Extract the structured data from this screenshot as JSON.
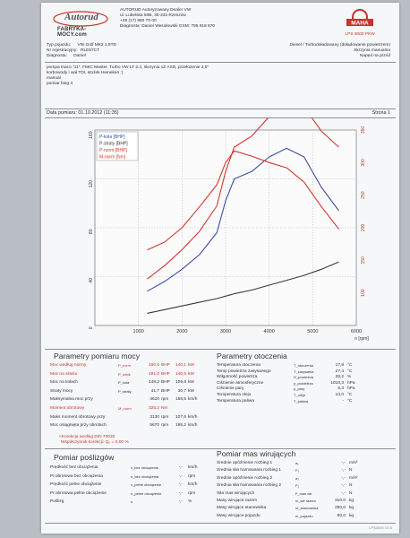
{
  "header": {
    "logo_top": "Autorud",
    "logo_bottom": "FABRYKA-MOCY.com",
    "company_lines": [
      "AUTORUD Autoryzowany Dealer VW",
      "ul. Lubelska 50B, 35-233 Rzeszów",
      "+48 (17) 860 70 00",
      "Diagnosta: Daniel Wesołowski GSM: 795 918 870"
    ],
    "brand_logo": "MAHA",
    "brand_model": "LPS 3000 PKW"
  },
  "vehicle": {
    "type_label": "Typ pojazdu:",
    "type_value": "VW Golf MK2 1.9TD",
    "reg_label": "Nr rejestracyjny:",
    "reg_value": "RLE67CT",
    "diag_label": "Diagnosta:",
    "diag_value": "Daniel",
    "engine": "Diesel / Turbodoładowany (doładowanie powietrzem)",
    "gearbox": "Skrzynia manualna",
    "drive": "Napęd na przód",
    "notes": [
      "pompa tnaco \"11\", FMIC Master, Turbo VW LT 2.4, skrzynia 1Z ASD, przełożenie 2,5\"",
      "korbowody i wał TDI, stożek Heineken :)",
      "manual",
      "pomiar bieg 4"
    ]
  },
  "meta": {
    "date_label": "Data pomiaru: 01.10.2012 (11:35)",
    "page_label": "Strona 1"
  },
  "chart_data": {
    "type": "line",
    "x_unit": "n [rpm]",
    "x": [
      1200,
      1600,
      2000,
      2400,
      2800,
      3000,
      3200,
      3600,
      4000,
      4400,
      4800,
      5200,
      5600
    ],
    "xlim": [
      0,
      6000
    ],
    "xticks": [
      "1000",
      "2000",
      "3000",
      "4000",
      "5000",
      "6000"
    ],
    "left_axis": {
      "ticks": [
        "0",
        "40",
        "80",
        "120",
        "160"
      ],
      "range": [
        0,
        160
      ]
    },
    "right_axis": {
      "ticks": [
        "100",
        "150",
        "200",
        "250",
        "300",
        "350"
      ],
      "range": [
        50,
        350
      ]
    },
    "legend": [
      "P-koła [BHP]",
      "P-straty [BHP]",
      "P-norm [BHP]",
      "M-norm [Nm]"
    ],
    "series": [
      {
        "name": "P-koła [BHP]",
        "axis": "left",
        "color": "#3a4ea8",
        "values": [
          28,
          36,
          46,
          58,
          76,
          102,
          120,
          126,
          138,
          145,
          138,
          113,
          94
        ]
      },
      {
        "name": "P-straty [BHP]",
        "axis": "left",
        "color": "#3a3a3a",
        "values": [
          10,
          13,
          16,
          19,
          22,
          24,
          26,
          29,
          33,
          37,
          41,
          46,
          52
        ]
      },
      {
        "name": "P-norm [BHP]",
        "axis": "left",
        "color": "#d7342c",
        "values": [
          38,
          49,
          62,
          77,
          98,
          126,
          146,
          155,
          171,
          182,
          179,
          159,
          146
        ]
      },
      {
        "name": "M-norm [Nm]",
        "axis": "right",
        "color": "#d7342c",
        "values": [
          166,
          178,
          200,
          232,
          266,
          300,
          318,
          310,
          300,
          292,
          270,
          232,
          198
        ]
      }
    ]
  },
  "power": {
    "title": "Parametry pomiaru mocy",
    "rows": [
      {
        "label": "Moc według normy",
        "sym": "P_norm",
        "v1": "190,5",
        "u1": "BHP",
        "v2": "140,1",
        "u2": "kW",
        "color": "red"
      },
      {
        "label": "Moc na silniku",
        "sym": "P_silnik",
        "v1": "191,0",
        "u1": "BHP",
        "v2": "140,5",
        "u2": "kW",
        "color": "red"
      },
      {
        "label": "Moc na kołach",
        "sym": "P_koła",
        "v1": "149,2",
        "u1": "BHP",
        "v2": "109,8",
        "u2": "kW",
        "color": "dark"
      },
      {
        "label": "Straty mocy",
        "sym": "P_straty",
        "v1": "41,7",
        "u1": "BHP",
        "v2": "30,7",
        "u2": "kW",
        "color": "dark"
      },
      {
        "label": "Maksymalna moc przy",
        "sym": "",
        "v1": "4610",
        "u1": "rpm",
        "v2": "158,5",
        "u2": "km/h",
        "color": "dark"
      },
      {
        "label": "Moment obrotowy",
        "sym": "M_norm",
        "v1": "325,2",
        "u1": "Nm",
        "v2": "",
        "u2": "",
        "color": "red"
      },
      {
        "label": "Maks moment obrotowy przy",
        "sym": "",
        "v1": "3130",
        "u1": "rpm",
        "v2": "107,6",
        "u2": "km/h",
        "color": "dark"
      },
      {
        "label": "Moc osiągnięta przy obrotach",
        "sym": "",
        "v1": "5670",
        "u1": "rpm",
        "v2": "195,2",
        "u2": "km/h",
        "color": "dark"
      }
    ],
    "correction": "Korekcja według DIN 70020",
    "correction_factor": "Współczynnik korekcji: Q₀ = 0,00 %"
  },
  "env": {
    "title": "Parametry otoczenia",
    "rows": [
      {
        "label": "Temperatura otoczenia",
        "sym": "T_otoczenia",
        "v": "17,8",
        "u": "°C"
      },
      {
        "label": "Temp powietrza zasysanego",
        "sym": "T_zasysania",
        "v": "27,4",
        "u": "°C"
      },
      {
        "label": "Wilgotność powietrza",
        "sym": "H_powietrza",
        "v": "26,2",
        "u": "%"
      },
      {
        "label": "Ciśnienie atmosferyczne",
        "sym": "p_powietrza",
        "v": "1010,3",
        "u": "hPa"
      },
      {
        "label": "Ciśnienie pary",
        "sym": "p_pary",
        "v": "5,3",
        "u": "hPa"
      },
      {
        "label": "Temperatura oleju",
        "sym": "T_oleju",
        "v": "13,0",
        "u": "°C"
      },
      {
        "label": "Temperatura paliwa",
        "sym": "T_paliwa",
        "v": "-",
        "u": "°C"
      }
    ]
  },
  "fuel": {
    "title": "Pomiar poślizgów",
    "rows": [
      {
        "label": "Prędkość bez obciążenia",
        "sym": "v_bez obciążenia",
        "v": "-,-",
        "u": "km/h"
      },
      {
        "label": "Pr.obrotowa bez obciążenia",
        "sym": "n_bez obciążenia",
        "v": "-,-",
        "u": "rpm"
      },
      {
        "label": "Prędkość pełne obciążenie",
        "sym": "v_pełne obciążenie",
        "v": "-,-",
        "u": "km/h"
      },
      {
        "label": "Pr.obrotowa pełne obciążenie",
        "sym": "n_pełne obciążenie",
        "v": "-,-",
        "u": "rpm"
      },
      {
        "label": "Poślizg",
        "sym": "s",
        "v": "-,-",
        "u": "%"
      }
    ]
  },
  "mass": {
    "title": "Pomiar mas wirujących",
    "rows": [
      {
        "label": "Średnie opóźnienie rozbieg 1",
        "sym": "a₁",
        "v": "-,-",
        "u": "m/s²"
      },
      {
        "label": "Średnia siła hamowania rozbieg 1",
        "sym": "F₁",
        "v": "-,-",
        "u": "N"
      },
      {
        "label": "Średnie opóźnienie rozbieg 2",
        "sym": "a₂",
        "v": "-,-",
        "u": "m/s²"
      },
      {
        "label": "Średnia siła hamowania rozbieg 2",
        "sym": "F₂",
        "v": "-,-",
        "u": "N"
      },
      {
        "label": "Siła mas wirujących",
        "sym": "F_mas wir",
        "v": "-,-",
        "u": "N"
      },
      {
        "label": "Masy wirujące razem",
        "sym": "m_wir razem",
        "v": "310,0",
        "u": "kg"
      },
      {
        "label": "Masy wirujące stanowiska",
        "sym": "m_stanowiska",
        "v": "250,0",
        "u": "kg"
      },
      {
        "label": "Masy wirujące pojazdu",
        "sym": "m_pojazdu",
        "v": "60,0",
        "u": "kg"
      }
    ]
  },
  "footer": "LPS3000 V2.6"
}
